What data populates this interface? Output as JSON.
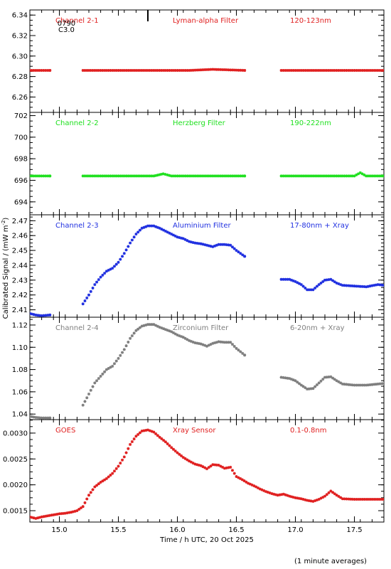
{
  "x_axis": {
    "label": "Time / h UTC, 20 Oct 2025",
    "range": [
      14.75,
      17.75
    ],
    "ticks": [
      15.0,
      15.5,
      16.0,
      16.5,
      17.0,
      17.5
    ],
    "tick_labels": [
      "15.0",
      "15.5",
      "16.0",
      "16.5",
      "17.0",
      "17.5"
    ]
  },
  "y_axis_label_main": "Calibrated Signal / (mW m",
  "y_axis_label_sup": "-2",
  "y_axis_label_end": ")",
  "footnote": "(1 minute averages)",
  "annotations": {
    "line1": "0790",
    "line2": "C3.0",
    "marker_time": 15.75
  },
  "chart_data": [
    {
      "type": "scatter",
      "name": "Channel 2-1",
      "filter": "Lyman-alpha Filter",
      "band": "120-123nm",
      "color": "#e02020",
      "ylim": [
        6.245,
        6.345
      ],
      "yticks": [
        6.26,
        6.28,
        6.3,
        6.32,
        6.34
      ],
      "ytick_labels": [
        "6.26",
        "6.28",
        "6.30",
        "6.32",
        "6.34"
      ],
      "segments": [
        {
          "x": [
            14.75,
            14.85,
            14.92
          ],
          "y": [
            6.286,
            6.286,
            6.286
          ]
        },
        {
          "x": [
            15.2,
            15.5,
            15.8,
            16.1,
            16.3,
            16.57
          ],
          "y": [
            6.286,
            6.286,
            6.286,
            6.286,
            6.287,
            6.286
          ]
        },
        {
          "x": [
            16.88,
            17.1,
            17.3,
            17.5,
            17.75
          ],
          "y": [
            6.286,
            6.286,
            6.286,
            6.286,
            6.286
          ]
        }
      ]
    },
    {
      "type": "scatter",
      "name": "Channel 2-2",
      "filter": "Herzberg Filter",
      "band": "190-222nm",
      "color": "#20e020",
      "ylim": [
        692.8,
        702.3
      ],
      "yticks": [
        694,
        696,
        698,
        700,
        702
      ],
      "ytick_labels": [
        "694",
        "696",
        "698",
        "700",
        "702"
      ],
      "segments": [
        {
          "x": [
            14.75,
            14.85,
            14.92
          ],
          "y": [
            696.4,
            696.4,
            696.4
          ]
        },
        {
          "x": [
            15.2,
            15.5,
            15.8,
            15.88,
            15.95,
            16.2,
            16.57
          ],
          "y": [
            696.4,
            696.4,
            696.4,
            696.6,
            696.4,
            696.4,
            696.4
          ]
        },
        {
          "x": [
            16.88,
            17.2,
            17.5,
            17.55,
            17.6,
            17.75
          ],
          "y": [
            696.4,
            696.4,
            696.4,
            696.7,
            696.4,
            696.4
          ]
        }
      ]
    },
    {
      "type": "scatter",
      "name": "Channel 2-3",
      "filter": "Aluminium Filter",
      "band": "17-80nm + Xray",
      "color": "#2030e0",
      "ylim": [
        2.405,
        2.474
      ],
      "yticks": [
        2.41,
        2.42,
        2.43,
        2.44,
        2.45,
        2.46,
        2.47
      ],
      "ytick_labels": [
        "2.41",
        "2.42",
        "2.43",
        "2.44",
        "2.45",
        "2.46",
        "2.47"
      ],
      "segments": [
        {
          "x": [
            14.75,
            14.8,
            14.85,
            14.92
          ],
          "y": [
            2.4075,
            2.4065,
            2.406,
            2.4065
          ]
        },
        {
          "x": [
            15.2,
            15.25,
            15.3,
            15.35,
            15.4,
            15.45,
            15.5,
            15.55,
            15.6,
            15.65,
            15.7,
            15.75,
            15.8,
            15.85,
            15.9,
            15.95,
            16.0,
            16.05,
            16.1,
            16.15,
            16.2,
            16.25,
            16.3,
            16.35,
            16.4,
            16.45,
            16.5,
            16.57
          ],
          "y": [
            2.414,
            2.42,
            2.427,
            2.432,
            2.436,
            2.438,
            2.442,
            2.448,
            2.455,
            2.461,
            2.465,
            2.4665,
            2.4665,
            2.465,
            2.463,
            2.461,
            2.459,
            2.458,
            2.456,
            2.455,
            2.4545,
            2.4535,
            2.4525,
            2.454,
            2.454,
            2.4535,
            2.45,
            2.446
          ]
        },
        {
          "x": [
            16.88,
            16.95,
            17.0,
            17.05,
            17.1,
            17.15,
            17.2,
            17.25,
            17.3,
            17.35,
            17.4,
            17.5,
            17.6,
            17.7,
            17.75
          ],
          "y": [
            2.4305,
            2.4305,
            2.429,
            2.427,
            2.4235,
            2.4235,
            2.427,
            2.43,
            2.4305,
            2.428,
            2.4265,
            2.426,
            2.4255,
            2.427,
            2.4265
          ]
        }
      ]
    },
    {
      "type": "scatter",
      "name": "Channel 2-4",
      "filter": "Zirconium Filter",
      "band": "6-20nm + Xray",
      "color": "#7f7f7f",
      "ylim": [
        1.035,
        1.127
      ],
      "yticks": [
        1.04,
        1.06,
        1.08,
        1.1,
        1.12
      ],
      "ytick_labels": [
        "1.04",
        "1.06",
        "1.08",
        "1.10",
        "1.12"
      ],
      "segments": [
        {
          "x": [
            14.75,
            14.8,
            14.85,
            14.92
          ],
          "y": [
            1.038,
            1.037,
            1.0365,
            1.0365
          ]
        },
        {
          "x": [
            15.2,
            15.25,
            15.3,
            15.35,
            15.4,
            15.45,
            15.5,
            15.55,
            15.6,
            15.65,
            15.7,
            15.75,
            15.8,
            15.85,
            15.9,
            15.95,
            16.0,
            16.05,
            16.1,
            16.15,
            16.2,
            16.25,
            16.3,
            16.35,
            16.4,
            16.45,
            16.5,
            16.57
          ],
          "y": [
            1.048,
            1.058,
            1.068,
            1.074,
            1.08,
            1.083,
            1.09,
            1.098,
            1.108,
            1.115,
            1.119,
            1.1205,
            1.1205,
            1.118,
            1.116,
            1.114,
            1.111,
            1.109,
            1.106,
            1.104,
            1.103,
            1.101,
            1.1035,
            1.105,
            1.1045,
            1.1045,
            1.099,
            1.093
          ]
        },
        {
          "x": [
            16.88,
            16.95,
            17.0,
            17.05,
            17.1,
            17.15,
            17.2,
            17.25,
            17.3,
            17.35,
            17.4,
            17.5,
            17.6,
            17.7,
            17.75
          ],
          "y": [
            1.073,
            1.072,
            1.07,
            1.066,
            1.0625,
            1.063,
            1.068,
            1.073,
            1.0735,
            1.07,
            1.067,
            1.066,
            1.066,
            1.067,
            1.0675
          ]
        }
      ]
    },
    {
      "type": "scatter",
      "name": "GOES",
      "filter": "Xray Sensor",
      "band": "0.1-0.8nm",
      "color": "#e02020",
      "ylim": [
        0.00128,
        0.00326
      ],
      "yticks": [
        0.0015,
        0.002,
        0.0025,
        0.003
      ],
      "ytick_labels": [
        "0.0015",
        "0.0020",
        "0.0025",
        "0.0030"
      ],
      "segments": [
        {
          "x": [
            14.75,
            14.8,
            14.85,
            14.9,
            14.95,
            15.0,
            15.05,
            15.1,
            15.15,
            15.2,
            15.25,
            15.3,
            15.35,
            15.4,
            15.45,
            15.5,
            15.55,
            15.6,
            15.65,
            15.7,
            15.75,
            15.8,
            15.85,
            15.9,
            15.95,
            16.0,
            16.05,
            16.1,
            16.15,
            16.2,
            16.25,
            16.3,
            16.35,
            16.4,
            16.45,
            16.5,
            16.55,
            16.6,
            16.65,
            16.7,
            16.75,
            16.8,
            16.85,
            16.9,
            16.95,
            17.0,
            17.05,
            17.1,
            17.15,
            17.2,
            17.25,
            17.3,
            17.35,
            17.4,
            17.5,
            17.6,
            17.7,
            17.75
          ],
          "y": [
            0.00138,
            0.00135,
            0.00138,
            0.0014,
            0.00142,
            0.00144,
            0.00145,
            0.00147,
            0.0015,
            0.00158,
            0.0018,
            0.00196,
            0.00205,
            0.00212,
            0.00222,
            0.00236,
            0.00254,
            0.00278,
            0.00294,
            0.00304,
            0.00306,
            0.00302,
            0.00292,
            0.00283,
            0.00272,
            0.00262,
            0.00253,
            0.00246,
            0.0024,
            0.00237,
            0.00231,
            0.00239,
            0.00238,
            0.00232,
            0.00234,
            0.00216,
            0.0021,
            0.00203,
            0.00198,
            0.00192,
            0.00187,
            0.00183,
            0.0018,
            0.00182,
            0.00178,
            0.00175,
            0.00173,
            0.0017,
            0.00168,
            0.00172,
            0.00178,
            0.00188,
            0.0018,
            0.00173,
            0.00172,
            0.00172,
            0.00172,
            0.00172
          ]
        }
      ]
    }
  ]
}
